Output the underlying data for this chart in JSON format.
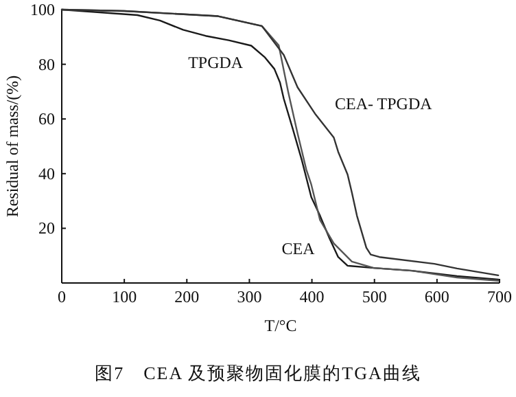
{
  "chart_data": {
    "type": "line",
    "title": "图7　CEA 及预聚物固化膜的TGA曲线",
    "xlabel": "T/°C",
    "ylabel": "Residual of mass/(%)",
    "xlim": [
      0,
      700
    ],
    "xticks": [
      0,
      100,
      200,
      300,
      400,
      500,
      600,
      700
    ],
    "ylim": [
      0,
      100
    ],
    "yticks": [
      20,
      40,
      60,
      80,
      100
    ],
    "grid": false,
    "legend": false,
    "marker": "none",
    "line_style": "solid",
    "series": [
      {
        "name": "TPGDA",
        "color": "#1a1a1a",
        "x": [
          0,
          121,
          157,
          194,
          230,
          267,
          303,
          325,
          340,
          349,
          355,
          369,
          384,
          399,
          413,
          428,
          442,
          457,
          499,
          560,
          632,
          698
        ],
        "values": [
          100,
          98,
          96,
          92.6,
          90.4,
          88.8,
          86.8,
          82.5,
          78.3,
          73.3,
          67.4,
          56.7,
          44.8,
          31.4,
          24.6,
          16.4,
          9.5,
          6.3,
          5.5,
          4.5,
          2.5,
          1.3
        ]
      },
      {
        "name": "CEA",
        "color": "#555555",
        "x": [
          0,
          100,
          250,
          320,
          347,
          362,
          377,
          391,
          399,
          413,
          435,
          464,
          499,
          560,
          632,
          698
        ],
        "values": [
          100,
          99.5,
          97.6,
          94,
          86.9,
          70,
          54.8,
          41.5,
          36,
          23,
          14.5,
          7.8,
          5.5,
          4.5,
          2,
          0.8
        ]
      },
      {
        "name": "CEA- TPGDA",
        "color": "#333333",
        "x": [
          0,
          100,
          250,
          320,
          355,
          377,
          406,
          435,
          442,
          457,
          464,
          472,
          487,
          494,
          508,
          596,
          632,
          698
        ],
        "values": [
          100,
          99.5,
          97.6,
          94,
          83.4,
          71.6,
          61.6,
          53.2,
          48,
          39.7,
          33,
          24.6,
          12.9,
          10.4,
          9.5,
          7,
          5.3,
          2.8
        ]
      }
    ]
  }
}
